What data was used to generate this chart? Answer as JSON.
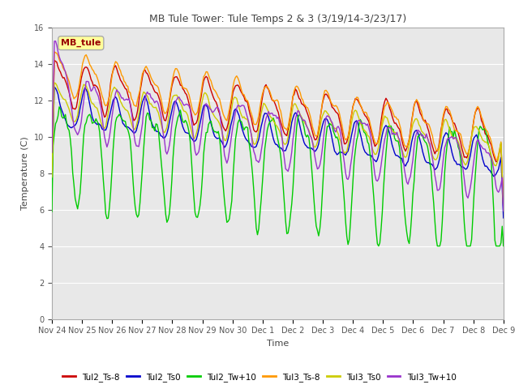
{
  "title": "MB Tule Tower: Tule Temps 2 & 3 (3/19/14-3/23/17)",
  "xlabel": "Time",
  "ylabel": "Temperature (C)",
  "ylim": [
    0,
    16
  ],
  "yticks": [
    0,
    2,
    4,
    6,
    8,
    10,
    12,
    14,
    16
  ],
  "fig_bg_color": "#ffffff",
  "plot_bg_color": "#e8e8e8",
  "annotation_text": "MB_tule",
  "annotation_color": "#990000",
  "annotation_bg": "#ffff99",
  "annotation_edge": "#aaaaaa",
  "legend_entries": [
    "Tul2_Ts-8",
    "Tul2_Ts0",
    "Tul2_Tw+10",
    "Tul3_Ts-8",
    "Tul3_Ts0",
    "Tul3_Tw+10"
  ],
  "legend_colors": [
    "#cc0000",
    "#0000cc",
    "#00cc00",
    "#ff9900",
    "#cccc00",
    "#9933cc"
  ],
  "line_colors": {
    "Tul2_Ts8": "#cc0000",
    "Tul2_Ts0": "#0000cc",
    "Tul2_Tw10": "#00cc00",
    "Tul3_Ts8": "#ff9900",
    "Tul3_Ts0": "#cccc00",
    "Tul3_Tw10": "#9933cc"
  },
  "n_points": 370,
  "x_start": 0,
  "x_end": 15,
  "xtick_positions": [
    0,
    1,
    2,
    3,
    4,
    5,
    6,
    7,
    8,
    9,
    10,
    11,
    12,
    13,
    14,
    15
  ],
  "xtick_labels": [
    "Nov 24",
    "Nov 25",
    "Nov 26",
    "Nov 27",
    "Nov 28",
    "Nov 29",
    "Nov 30",
    "Dec 1",
    "Dec 2",
    "Dec 3",
    "Dec 4",
    "Dec 5",
    "Dec 6",
    "Dec 7",
    "Dec 8",
    "Dec 9"
  ]
}
